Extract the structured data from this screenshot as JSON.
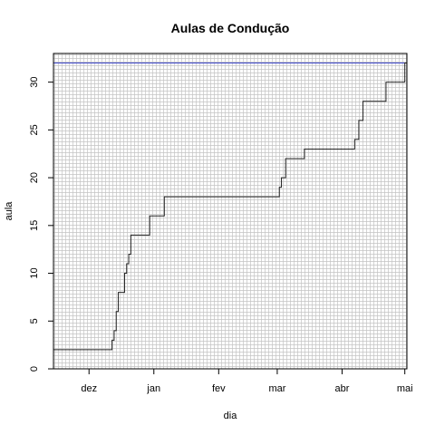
{
  "chart_data": {
    "type": "line",
    "title": "Aulas de Condução",
    "xlabel": "dia",
    "ylabel": "aula",
    "x_ticks": [
      {
        "date": "2017-12-01",
        "label": "dez"
      },
      {
        "date": "2018-01-01",
        "label": "jan"
      },
      {
        "date": "2018-02-01",
        "label": "fev"
      },
      {
        "date": "2018-03-01",
        "label": "mar"
      },
      {
        "date": "2018-04-01",
        "label": "abr"
      },
      {
        "date": "2018-05-01",
        "label": "mai"
      }
    ],
    "y_ticks": [
      0,
      5,
      10,
      15,
      20,
      25,
      30
    ],
    "xlim": [
      "2017-11-14",
      "2018-05-02"
    ],
    "ylim": [
      0,
      33
    ],
    "grid": true,
    "reference_line": {
      "y": 32,
      "color": "#3b44c8"
    },
    "series": [
      {
        "type": "step",
        "color": "#222222",
        "points": [
          {
            "date": "2017-11-14",
            "y": 2
          },
          {
            "date": "2017-12-12",
            "y": 3
          },
          {
            "date": "2017-12-13",
            "y": 4
          },
          {
            "date": "2017-12-14",
            "y": 6
          },
          {
            "date": "2017-12-15",
            "y": 8
          },
          {
            "date": "2017-12-18",
            "y": 10
          },
          {
            "date": "2017-12-19",
            "y": 11
          },
          {
            "date": "2017-12-20",
            "y": 12
          },
          {
            "date": "2017-12-21",
            "y": 14
          },
          {
            "date": "2017-12-30",
            "y": 16
          },
          {
            "date": "2018-01-06",
            "y": 18
          },
          {
            "date": "2018-03-02",
            "y": 19
          },
          {
            "date": "2018-03-03",
            "y": 20
          },
          {
            "date": "2018-03-05",
            "y": 22
          },
          {
            "date": "2018-03-14",
            "y": 23
          },
          {
            "date": "2018-04-07",
            "y": 24
          },
          {
            "date": "2018-04-09",
            "y": 26
          },
          {
            "date": "2018-04-11",
            "y": 28
          },
          {
            "date": "2018-04-22",
            "y": 30
          },
          {
            "date": "2018-05-01",
            "y": 32
          }
        ]
      }
    ]
  }
}
